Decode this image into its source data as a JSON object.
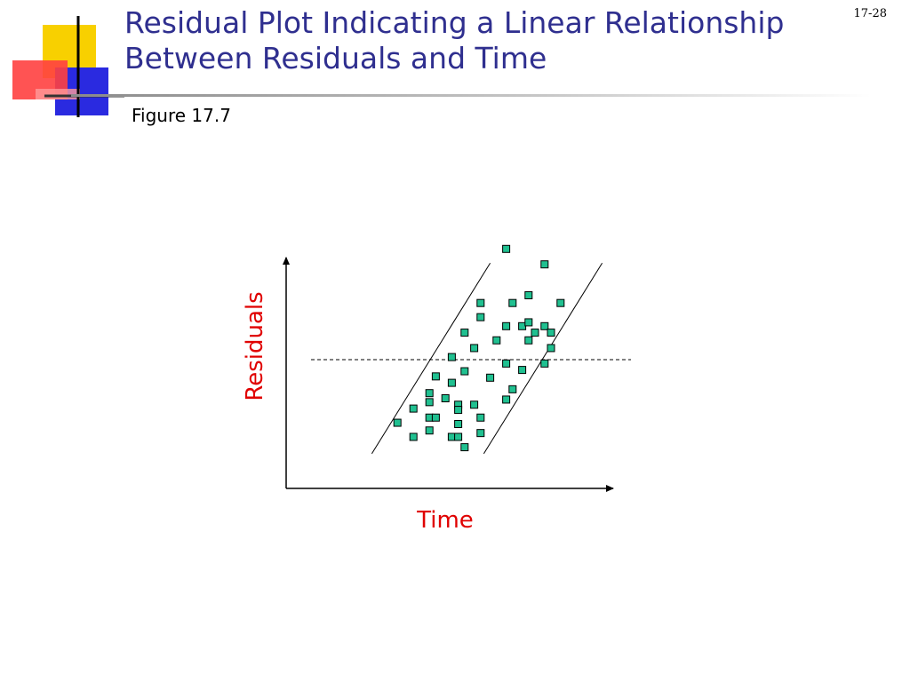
{
  "slide": {
    "title_line1": "Residual Plot Indicating a Linear Relationship",
    "title_line2": "Between Residuals and Time",
    "page_number": "17-28",
    "figure_label": "Figure 17.7"
  },
  "colors": {
    "title": "#2f2f8f",
    "axis_title": "#e00000",
    "point_fill": "#20c090",
    "point_stroke": "#000000"
  },
  "chart_data": {
    "type": "scatter",
    "title": "",
    "xlabel": "Time",
    "ylabel": "Residuals",
    "xlim": [
      0,
      100
    ],
    "ylim": [
      -100,
      100
    ],
    "show_tick_labels": false,
    "grid": false,
    "reference_line": {
      "y": 0,
      "style": "dashed"
    },
    "trend_band": {
      "lower": {
        "x": [
          54,
          91
        ],
        "y": [
          -73,
          75
        ]
      },
      "upper": {
        "x": [
          19,
          56
        ],
        "y": [
          -73,
          75
        ]
      }
    },
    "points": [
      {
        "x": 27,
        "y": -49
      },
      {
        "x": 32,
        "y": -38
      },
      {
        "x": 32,
        "y": -60
      },
      {
        "x": 37,
        "y": -26
      },
      {
        "x": 37,
        "y": -33
      },
      {
        "x": 37,
        "y": -45
      },
      {
        "x": 37,
        "y": -55
      },
      {
        "x": 39,
        "y": -45
      },
      {
        "x": 39,
        "y": -13
      },
      {
        "x": 42,
        "y": -30
      },
      {
        "x": 44,
        "y": -18
      },
      {
        "x": 44,
        "y": -60
      },
      {
        "x": 44,
        "y": 2
      },
      {
        "x": 46,
        "y": -35
      },
      {
        "x": 46,
        "y": -39
      },
      {
        "x": 46,
        "y": -50
      },
      {
        "x": 46,
        "y": -60
      },
      {
        "x": 48,
        "y": -68
      },
      {
        "x": 48,
        "y": -9
      },
      {
        "x": 48,
        "y": 21
      },
      {
        "x": 51,
        "y": -35
      },
      {
        "x": 51,
        "y": 9
      },
      {
        "x": 53,
        "y": -57
      },
      {
        "x": 53,
        "y": -45
      },
      {
        "x": 53,
        "y": 33
      },
      {
        "x": 53,
        "y": 44
      },
      {
        "x": 56,
        "y": -14
      },
      {
        "x": 58,
        "y": 15
      },
      {
        "x": 61,
        "y": -31
      },
      {
        "x": 61,
        "y": -3
      },
      {
        "x": 61,
        "y": 26
      },
      {
        "x": 61,
        "y": 86
      },
      {
        "x": 63,
        "y": -23
      },
      {
        "x": 63,
        "y": 44
      },
      {
        "x": 66,
        "y": -8
      },
      {
        "x": 66,
        "y": 26
      },
      {
        "x": 68,
        "y": 15
      },
      {
        "x": 68,
        "y": 29
      },
      {
        "x": 68,
        "y": 50
      },
      {
        "x": 70,
        "y": 21
      },
      {
        "x": 73,
        "y": 26
      },
      {
        "x": 73,
        "y": 74
      },
      {
        "x": 73,
        "y": -3
      },
      {
        "x": 75,
        "y": 21
      },
      {
        "x": 75,
        "y": 9
      },
      {
        "x": 78,
        "y": 44
      }
    ]
  }
}
